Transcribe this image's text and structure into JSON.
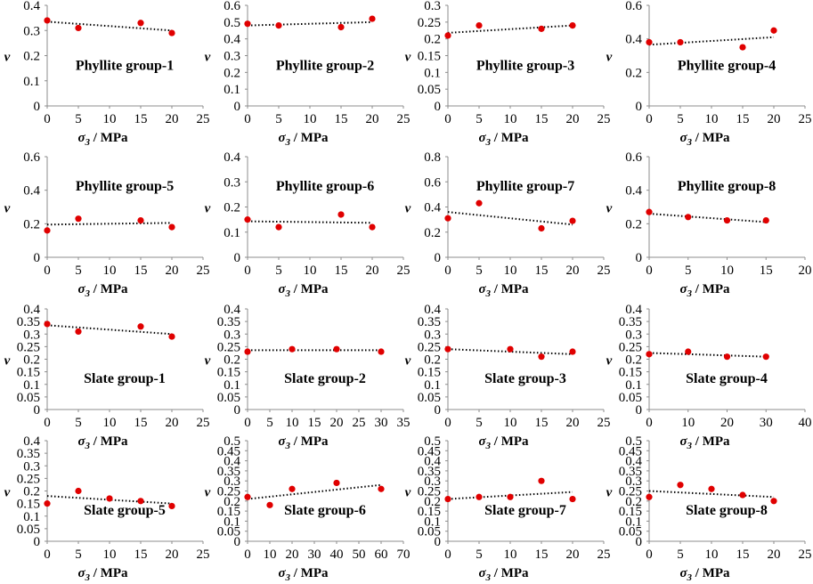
{
  "chart_data": [
    {
      "type": "scatter",
      "title": "Phyllite group-1",
      "xlabel_symbol": "σ",
      "xlabel_sub": "3",
      "xlabel_unit": " / MPa",
      "ylabel": "ν",
      "xlim": [
        0,
        25
      ],
      "ylim": [
        0,
        0.4
      ],
      "xticks": [
        0,
        5,
        10,
        15,
        20,
        25
      ],
      "yticks": [
        0,
        0.1,
        0.2,
        0.3,
        0.4
      ],
      "x": [
        0,
        5,
        15,
        20
      ],
      "y": [
        0.34,
        0.31,
        0.33,
        0.29
      ],
      "trend": [
        [
          0,
          0.335
        ],
        [
          20,
          0.3
        ]
      ],
      "title_pos": "center",
      "colors": {
        "point": "#e00000",
        "trend": "#000000"
      }
    },
    {
      "type": "scatter",
      "title": "Phyllite group-2",
      "xlabel_symbol": "σ",
      "xlabel_sub": "3",
      "xlabel_unit": " / MPa",
      "ylabel": "ν",
      "xlim": [
        0,
        25
      ],
      "ylim": [
        0,
        0.6
      ],
      "xticks": [
        0,
        5,
        10,
        15,
        20,
        25
      ],
      "yticks": [
        0,
        0.1,
        0.2,
        0.3,
        0.4,
        0.5,
        0.6
      ],
      "x": [
        0,
        5,
        15,
        20
      ],
      "y": [
        0.49,
        0.48,
        0.47,
        0.52
      ],
      "trend": [
        [
          0,
          0.48
        ],
        [
          20,
          0.5
        ]
      ],
      "title_pos": "center",
      "colors": {
        "point": "#e00000",
        "trend": "#000000"
      }
    },
    {
      "type": "scatter",
      "title": "Phyllite group-3",
      "xlabel_symbol": "σ",
      "xlabel_sub": "3",
      "xlabel_unit": " / MPa",
      "ylabel": "ν",
      "xlim": [
        0,
        25
      ],
      "ylim": [
        0,
        0.3
      ],
      "xticks": [
        0,
        5,
        10,
        15,
        20,
        25
      ],
      "yticks": [
        0,
        0.05,
        0.1,
        0.15,
        0.2,
        0.25,
        0.3
      ],
      "x": [
        0,
        5,
        15,
        20
      ],
      "y": [
        0.21,
        0.24,
        0.23,
        0.24
      ],
      "trend": [
        [
          0,
          0.218
        ],
        [
          20,
          0.24
        ]
      ],
      "title_pos": "center",
      "colors": {
        "point": "#e00000",
        "trend": "#000000"
      }
    },
    {
      "type": "scatter",
      "title": "Phyllite group-4",
      "xlabel_symbol": "σ",
      "xlabel_sub": "3",
      "xlabel_unit": " / MPa",
      "ylabel": "ν",
      "xlim": [
        0,
        25
      ],
      "ylim": [
        0,
        0.6
      ],
      "xticks": [
        0,
        5,
        10,
        15,
        20,
        25
      ],
      "yticks": [
        0,
        0.2,
        0.4,
        0.6
      ],
      "x": [
        0,
        5,
        15,
        20
      ],
      "y": [
        0.38,
        0.38,
        0.35,
        0.45
      ],
      "trend": [
        [
          0,
          0.365
        ],
        [
          20,
          0.41
        ]
      ],
      "title_pos": "center",
      "colors": {
        "point": "#e00000",
        "trend": "#000000"
      }
    },
    {
      "type": "scatter",
      "title": "Phyllite group-5",
      "xlabel_symbol": "σ",
      "xlabel_sub": "3",
      "xlabel_unit": " / MPa",
      "ylabel": "ν",
      "xlim": [
        0,
        25
      ],
      "ylim": [
        0,
        0.6
      ],
      "xticks": [
        0,
        5,
        10,
        15,
        20,
        25
      ],
      "yticks": [
        0,
        0.2,
        0.4,
        0.6
      ],
      "x": [
        0,
        5,
        15,
        20
      ],
      "y": [
        0.16,
        0.23,
        0.22,
        0.18
      ],
      "trend": [
        [
          0,
          0.195
        ],
        [
          20,
          0.205
        ]
      ],
      "title_pos": "top",
      "colors": {
        "point": "#e00000",
        "trend": "#000000"
      }
    },
    {
      "type": "scatter",
      "title": "Phyllite group-6",
      "xlabel_symbol": "σ",
      "xlabel_sub": "3",
      "xlabel_unit": " / MPa",
      "ylabel": "ν",
      "xlim": [
        0,
        25
      ],
      "ylim": [
        0,
        0.4
      ],
      "xticks": [
        0,
        5,
        10,
        15,
        20,
        25
      ],
      "yticks": [
        0,
        0.1,
        0.2,
        0.3,
        0.4
      ],
      "x": [
        0,
        5,
        15,
        20
      ],
      "y": [
        0.15,
        0.12,
        0.17,
        0.12
      ],
      "trend": [
        [
          0,
          0.143
        ],
        [
          20,
          0.137
        ]
      ],
      "title_pos": "top",
      "colors": {
        "point": "#e00000",
        "trend": "#000000"
      }
    },
    {
      "type": "scatter",
      "title": "Phyllite group-7",
      "xlabel_symbol": "σ",
      "xlabel_sub": "3",
      "xlabel_unit": " / MPa",
      "ylabel": "ν",
      "xlim": [
        0,
        25
      ],
      "ylim": [
        0,
        0.8
      ],
      "xticks": [
        0,
        5,
        10,
        15,
        20,
        25
      ],
      "yticks": [
        0,
        0.2,
        0.4,
        0.6,
        0.8
      ],
      "x": [
        0,
        5,
        15,
        20
      ],
      "y": [
        0.31,
        0.43,
        0.23,
        0.29
      ],
      "trend": [
        [
          0,
          0.36
        ],
        [
          20,
          0.26
        ]
      ],
      "title_pos": "top",
      "colors": {
        "point": "#e00000",
        "trend": "#000000"
      }
    },
    {
      "type": "scatter",
      "title": "Phyllite group-8",
      "xlabel_symbol": "σ",
      "xlabel_sub": "3",
      "xlabel_unit": " / MPa",
      "ylabel": "ν",
      "xlim": [
        0,
        20
      ],
      "ylim": [
        0,
        0.6
      ],
      "xticks": [
        0,
        5,
        10,
        15,
        20
      ],
      "yticks": [
        0,
        0.2,
        0.4,
        0.6
      ],
      "x": [
        0,
        5,
        10,
        15
      ],
      "y": [
        0.27,
        0.24,
        0.22,
        0.22
      ],
      "trend": [
        [
          0,
          0.26
        ],
        [
          15,
          0.21
        ]
      ],
      "title_pos": "top",
      "colors": {
        "point": "#e00000",
        "trend": "#000000"
      }
    },
    {
      "type": "scatter",
      "title": "Slate group-1",
      "xlabel_symbol": "σ",
      "xlabel_sub": "3",
      "xlabel_unit": " / MPa",
      "ylabel": "ν",
      "xlim": [
        0,
        25
      ],
      "ylim": [
        0,
        0.4
      ],
      "xticks": [
        0,
        5,
        10,
        15,
        20,
        25
      ],
      "yticks": [
        0,
        0.05,
        0.1,
        0.15,
        0.2,
        0.25,
        0.3,
        0.35,
        0.4
      ],
      "x": [
        0,
        5,
        15,
        20
      ],
      "y": [
        0.34,
        0.31,
        0.33,
        0.29
      ],
      "trend": [
        [
          0,
          0.335
        ],
        [
          20,
          0.3
        ]
      ],
      "title_pos": "bottom",
      "colors": {
        "point": "#e00000",
        "trend": "#000000"
      }
    },
    {
      "type": "scatter",
      "title": "Slate group-2",
      "xlabel_symbol": "σ",
      "xlabel_sub": "3",
      "xlabel_unit": " / MPa",
      "ylabel": "ν",
      "xlim": [
        0,
        35
      ],
      "ylim": [
        0,
        0.4
      ],
      "xticks": [
        0,
        5,
        10,
        15,
        20,
        25,
        30,
        35
      ],
      "yticks": [
        0,
        0.05,
        0.1,
        0.15,
        0.2,
        0.25,
        0.3,
        0.35,
        0.4
      ],
      "x": [
        0,
        10,
        20,
        30
      ],
      "y": [
        0.23,
        0.24,
        0.24,
        0.23
      ],
      "trend": [
        [
          0,
          0.236
        ],
        [
          30,
          0.236
        ]
      ],
      "title_pos": "bottom",
      "colors": {
        "point": "#e00000",
        "trend": "#000000"
      }
    },
    {
      "type": "scatter",
      "title": "Slate group-3",
      "xlabel_symbol": "σ",
      "xlabel_sub": "3",
      "xlabel_unit": " / MPa",
      "ylabel": "ν",
      "xlim": [
        0,
        25
      ],
      "ylim": [
        0,
        0.4
      ],
      "xticks": [
        0,
        5,
        10,
        15,
        20,
        25
      ],
      "yticks": [
        0,
        0.05,
        0.1,
        0.15,
        0.2,
        0.25,
        0.3,
        0.35,
        0.4
      ],
      "x": [
        0,
        10,
        15,
        20
      ],
      "y": [
        0.24,
        0.24,
        0.21,
        0.23
      ],
      "trend": [
        [
          0,
          0.24
        ],
        [
          20,
          0.22
        ]
      ],
      "title_pos": "bottom",
      "colors": {
        "point": "#e00000",
        "trend": "#000000"
      }
    },
    {
      "type": "scatter",
      "title": "Slate group-4",
      "xlabel_symbol": "σ",
      "xlabel_sub": "3",
      "xlabel_unit": " / MPa",
      "ylabel": "ν",
      "xlim": [
        0,
        40
      ],
      "ylim": [
        0,
        0.4
      ],
      "xticks": [
        0,
        10,
        20,
        30,
        40
      ],
      "yticks": [
        0,
        0.05,
        0.1,
        0.15,
        0.2,
        0.25,
        0.3,
        0.35,
        0.4
      ],
      "x": [
        0,
        10,
        20,
        30
      ],
      "y": [
        0.22,
        0.23,
        0.21,
        0.21
      ],
      "trend": [
        [
          0,
          0.225
        ],
        [
          30,
          0.21
        ]
      ],
      "title_pos": "bottom",
      "colors": {
        "point": "#e00000",
        "trend": "#000000"
      }
    },
    {
      "type": "scatter",
      "title": "Slate group-5",
      "xlabel_symbol": "σ",
      "xlabel_sub": "3",
      "xlabel_unit": " / MPa",
      "ylabel": "ν",
      "xlim": [
        0,
        25
      ],
      "ylim": [
        0,
        0.4
      ],
      "xticks": [
        0,
        5,
        10,
        15,
        20,
        25
      ],
      "yticks": [
        0,
        0.05,
        0.1,
        0.15,
        0.2,
        0.25,
        0.3,
        0.35,
        0.4
      ],
      "x": [
        0,
        5,
        10,
        15,
        20
      ],
      "y": [
        0.15,
        0.2,
        0.17,
        0.16,
        0.14
      ],
      "trend": [
        [
          0,
          0.18
        ],
        [
          20,
          0.15
        ]
      ],
      "title_pos": "bottom",
      "colors": {
        "point": "#e00000",
        "trend": "#000000"
      }
    },
    {
      "type": "scatter",
      "title": "Slate group-6",
      "xlabel_symbol": "σ",
      "xlabel_sub": "3",
      "xlabel_unit": " / MPa",
      "ylabel": "ν",
      "xlim": [
        0,
        70
      ],
      "ylim": [
        0,
        0.5
      ],
      "xticks": [
        0,
        10,
        20,
        30,
        40,
        50,
        60,
        70
      ],
      "yticks": [
        0,
        0.05,
        0.1,
        0.15,
        0.2,
        0.25,
        0.3,
        0.35,
        0.4,
        0.45,
        0.5
      ],
      "x": [
        0,
        10,
        20,
        40,
        60
      ],
      "y": [
        0.22,
        0.18,
        0.26,
        0.29,
        0.26
      ],
      "trend": [
        [
          0,
          0.21
        ],
        [
          60,
          0.28
        ]
      ],
      "title_pos": "bottom",
      "colors": {
        "point": "#e00000",
        "trend": "#000000"
      }
    },
    {
      "type": "scatter",
      "title": "Slate group-7",
      "xlabel_symbol": "σ",
      "xlabel_sub": "3",
      "xlabel_unit": " / MPa",
      "ylabel": "ν",
      "xlim": [
        0,
        25
      ],
      "ylim": [
        0,
        0.5
      ],
      "xticks": [
        0,
        5,
        10,
        15,
        20,
        25
      ],
      "yticks": [
        0,
        0.05,
        0.1,
        0.15,
        0.2,
        0.25,
        0.3,
        0.35,
        0.4,
        0.45,
        0.5
      ],
      "x": [
        0,
        5,
        10,
        15,
        20
      ],
      "y": [
        0.21,
        0.22,
        0.22,
        0.3,
        0.21
      ],
      "trend": [
        [
          0,
          0.21
        ],
        [
          20,
          0.245
        ]
      ],
      "title_pos": "bottom",
      "colors": {
        "point": "#e00000",
        "trend": "#000000"
      }
    },
    {
      "type": "scatter",
      "title": "Slate group-8",
      "xlabel_symbol": "σ",
      "xlabel_sub": "3",
      "xlabel_unit": " / MPa",
      "ylabel": "ν",
      "xlim": [
        0,
        25
      ],
      "ylim": [
        0,
        0.5
      ],
      "xticks": [
        0,
        5,
        10,
        15,
        20,
        25
      ],
      "yticks": [
        0,
        0.05,
        0.1,
        0.15,
        0.2,
        0.25,
        0.3,
        0.35,
        0.4,
        0.45,
        0.5
      ],
      "x": [
        0,
        5,
        10,
        15,
        20
      ],
      "y": [
        0.22,
        0.28,
        0.26,
        0.23,
        0.2
      ],
      "trend": [
        [
          0,
          0.25
        ],
        [
          20,
          0.22
        ]
      ],
      "title_pos": "bottom",
      "colors": {
        "point": "#e00000",
        "trend": "#000000"
      }
    }
  ]
}
